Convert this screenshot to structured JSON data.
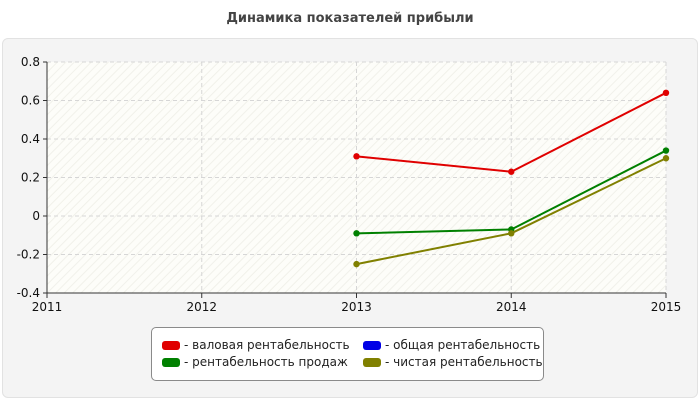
{
  "chart_data": {
    "type": "line",
    "title": "Динамика показателей прибыли",
    "xlabel": "",
    "ylabel": "",
    "x": [
      2011,
      2012,
      2013,
      2014,
      2015
    ],
    "xlim": [
      2011,
      2015
    ],
    "ylim": [
      -0.4,
      0.8
    ],
    "y_ticks": [
      "0.8",
      "0.6",
      "0.4",
      "0.2",
      "0",
      "-0.2",
      "-0.4"
    ],
    "x_ticks": [
      "2011",
      "2012",
      "2013",
      "2014",
      "2015"
    ],
    "grid": true,
    "legend_position": "bottom",
    "series": [
      {
        "name": "- валовая рентабельность",
        "color": "#e00000",
        "values": [
          null,
          null,
          0.31,
          0.23,
          0.64
        ]
      },
      {
        "name": "- общая рентабельность",
        "color": "#0000e6",
        "values": [
          null,
          null,
          null,
          null,
          null
        ]
      },
      {
        "name": "- рентабельность продаж",
        "color": "#008000",
        "values": [
          null,
          null,
          -0.09,
          -0.07,
          0.34
        ]
      },
      {
        "name": "- чистая рентабельность",
        "color": "#808000",
        "values": [
          null,
          null,
          -0.25,
          -0.09,
          0.3
        ]
      }
    ]
  }
}
